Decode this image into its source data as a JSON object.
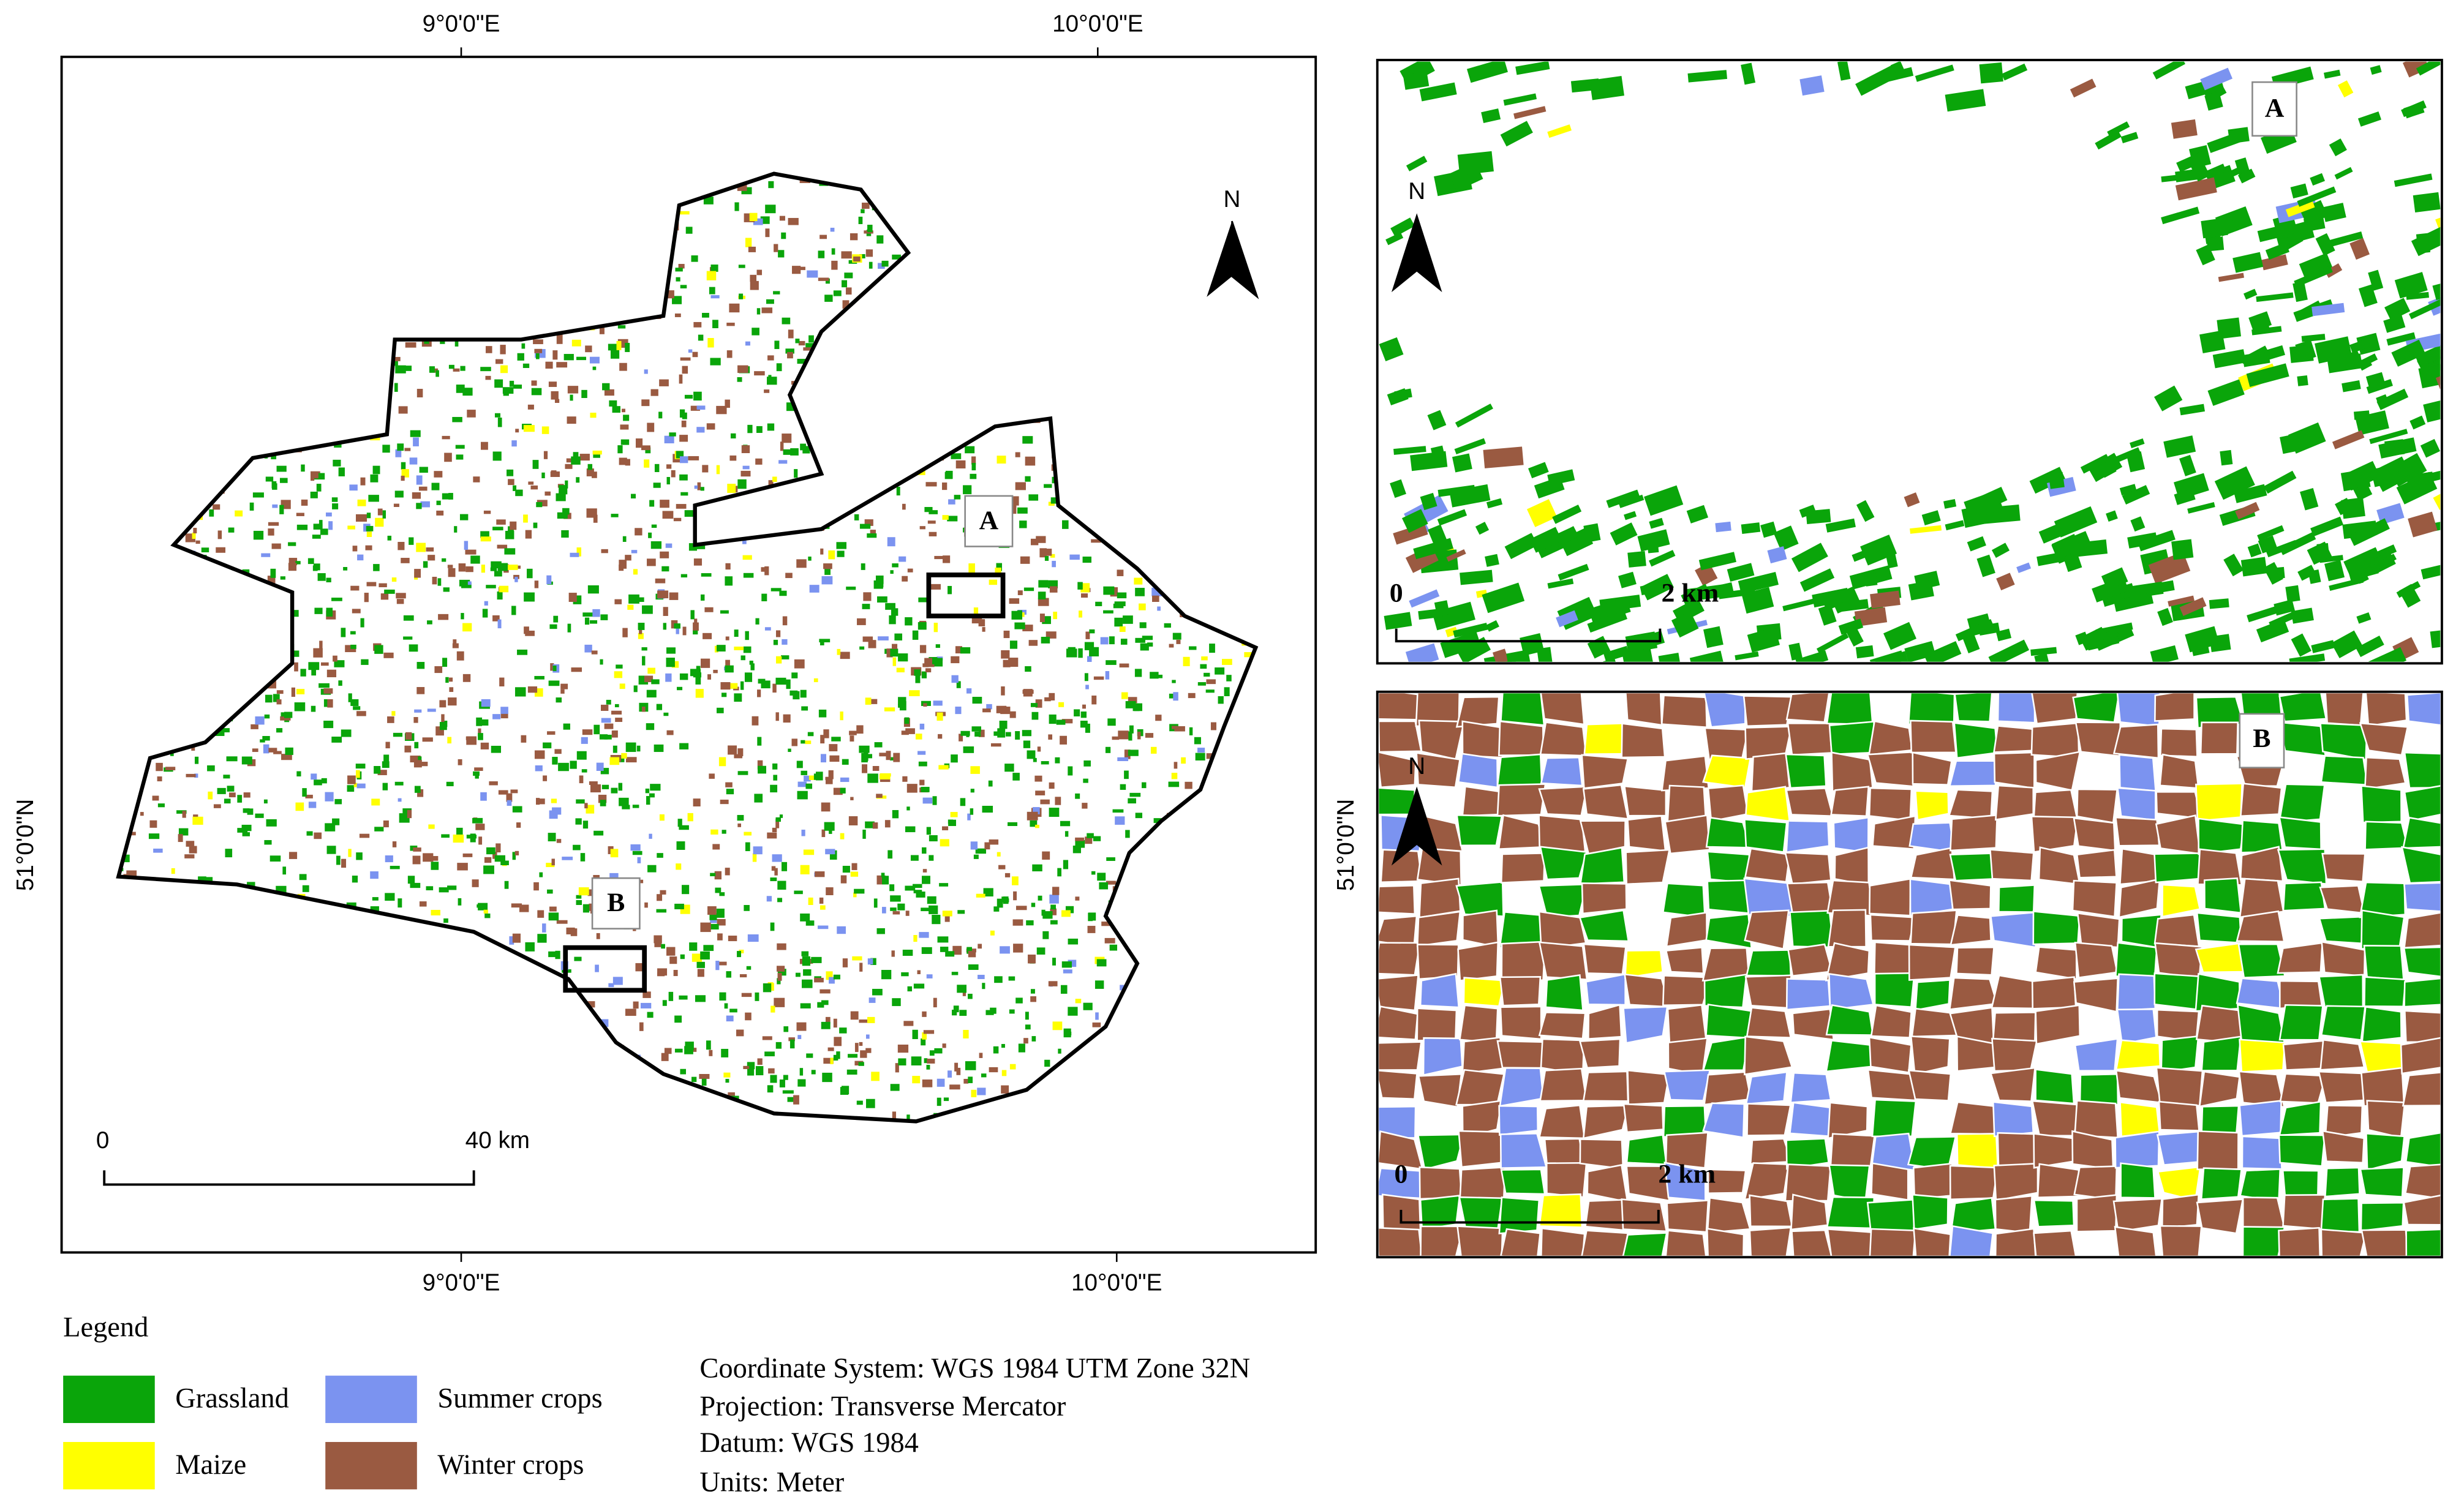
{
  "main_map": {
    "top_labels": [
      "9°0'0\"E",
      "10°0'0\"E"
    ],
    "bottom_labels": [
      "9°0'0\"E",
      "10°0'0\"E"
    ],
    "left_label": "51°0'0\"N",
    "right_label": "51°0'0\"N",
    "north": "N",
    "scale_bar": {
      "start": "0",
      "end": "40 km"
    },
    "boxes": [
      "A",
      "B"
    ]
  },
  "inset_a": {
    "label": "A",
    "north": "N",
    "scale_bar": {
      "start": "0",
      "end": "2 km"
    }
  },
  "inset_b": {
    "label": "B",
    "north": "N",
    "scale_bar": {
      "start": "0",
      "end": "2 km"
    }
  },
  "legend": {
    "title": "Legend",
    "items": [
      {
        "label": "Grassland",
        "color": "#0aa50a"
      },
      {
        "label": "Maize",
        "color": "#ffff00"
      },
      {
        "label": "Summer crops",
        "color": "#7b93f0"
      },
      {
        "label": "Winter crops",
        "color": "#9a5a41"
      }
    ]
  },
  "info": [
    "Coordinate System: WGS 1984 UTM Zone 32N",
    "Projection: Transverse Mercator",
    "Datum: WGS 1984",
    "Units: Meter"
  ]
}
